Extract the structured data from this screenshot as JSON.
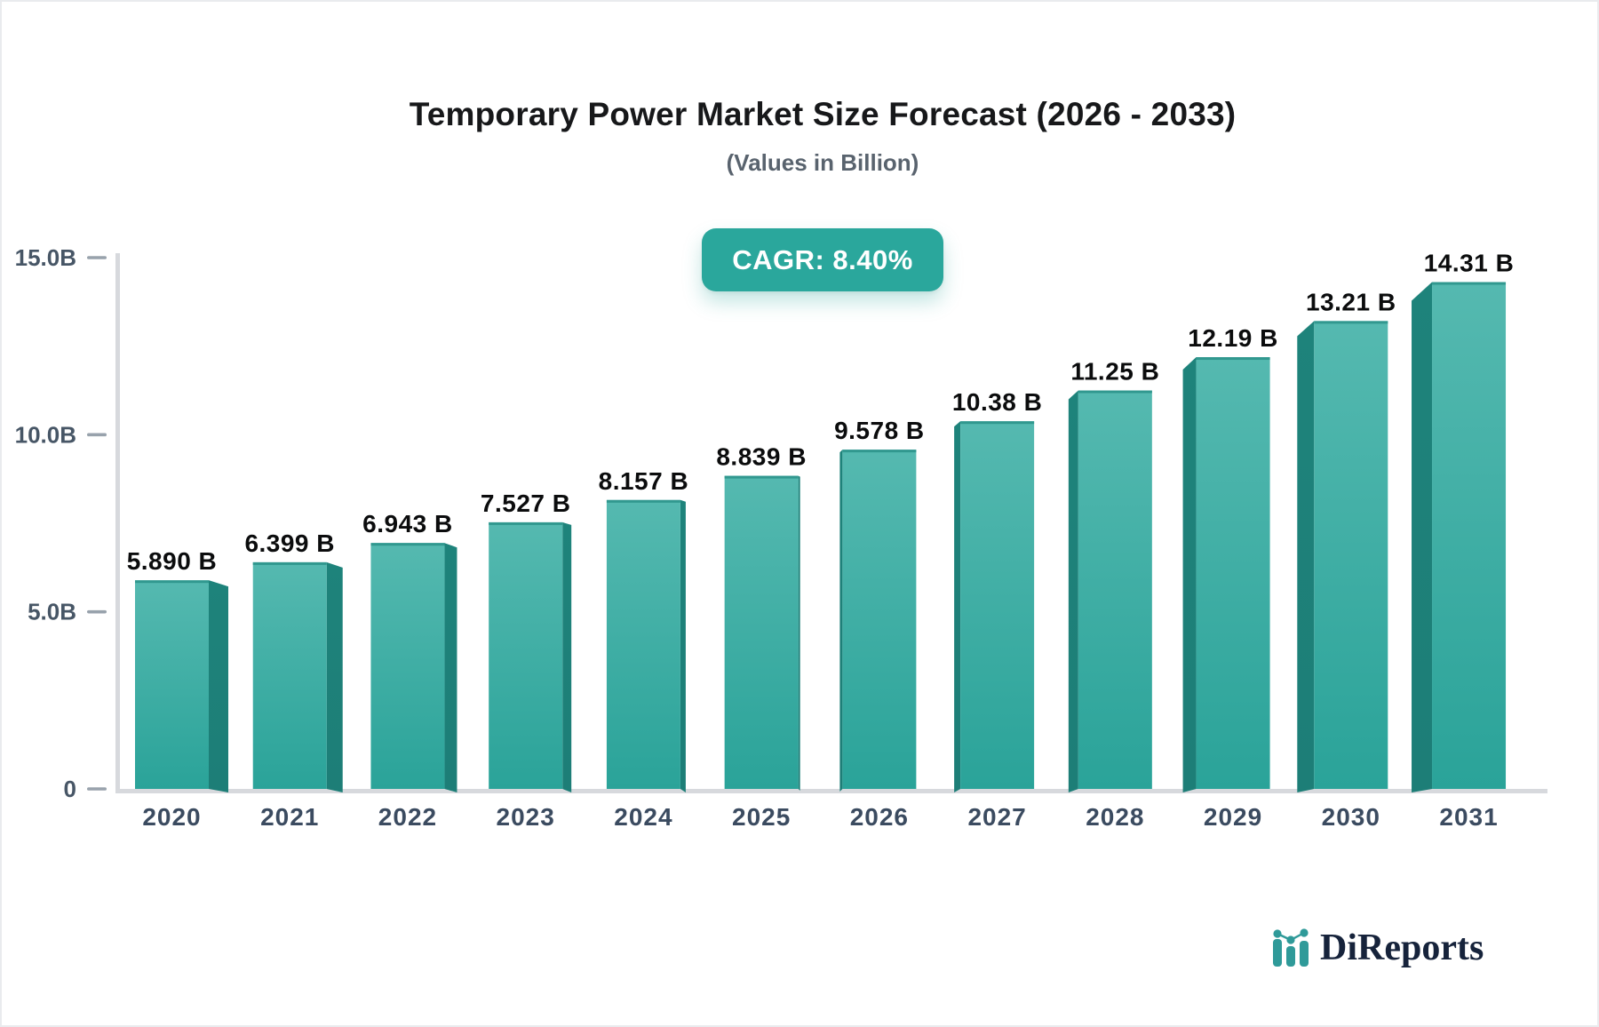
{
  "chart_data": {
    "type": "bar",
    "title": "Temporary Power Market Size Forecast (2026 - 2033)",
    "subtitle": "(Values in Billion)",
    "cagr_label": "CAGR: 8.40%",
    "categories": [
      "2020",
      "2021",
      "2022",
      "2023",
      "2024",
      "2025",
      "2026",
      "2027",
      "2028",
      "2029",
      "2030",
      "2031"
    ],
    "values": [
      5.89,
      6.399,
      6.943,
      7.527,
      8.157,
      8.839,
      9.578,
      10.38,
      11.25,
      12.19,
      13.21,
      14.31
    ],
    "value_labels": [
      "5.890 B",
      "6.399 B",
      "6.943 B",
      "7.527 B",
      "8.157 B",
      "8.839 B",
      "9.578 B",
      "10.38 B",
      "11.25 B",
      "12.19 B",
      "13.21 B",
      "14.31 B"
    ],
    "xlabel": "",
    "ylabel": "",
    "ylim": [
      0,
      15
    ],
    "y_axis_ticks": [
      {
        "value": 15,
        "label": "15.0B"
      },
      {
        "value": 10,
        "label": "10.0B"
      },
      {
        "value": 5,
        "label": "5.0B"
      },
      {
        "value": 0,
        "label": "0"
      }
    ],
    "grid": false,
    "legend": "none",
    "style_3d": true,
    "colors": {
      "bar_front_top": "#55b9b0",
      "bar_front_bottom": "#2aa399",
      "bar_top_edge": "#31988f",
      "bar_side": "#1e837b",
      "axis_line": "#d7d9dd",
      "tick_dash": "#98a2ac",
      "axis_label": "#475666",
      "category_label": "#3b4b60",
      "value_label": "#0b0c0d",
      "accent": "#2aa79c"
    }
  },
  "branding": {
    "logo_text": "DiReports",
    "logo_icon": "mini-bar-chart-with-trend-dots",
    "logo_text_color": "#16233b",
    "logo_icon_color": "#2f9a99"
  }
}
